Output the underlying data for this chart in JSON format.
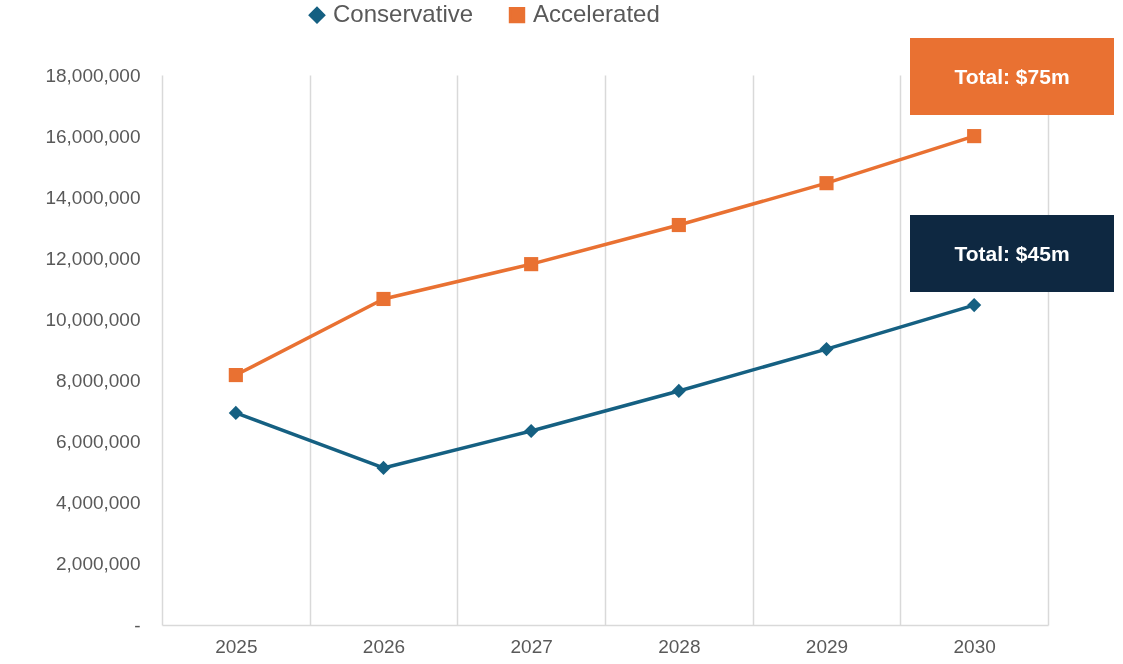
{
  "chart_data": {
    "type": "line",
    "categories": [
      "2025",
      "2026",
      "2027",
      "2028",
      "2029",
      "2030"
    ],
    "series": [
      {
        "name": "Conservative",
        "color": "#156082",
        "marker": "diamond",
        "values": [
          6940000,
          5140000,
          6350000,
          7660000,
          9030000,
          10470000
        ]
      },
      {
        "name": "Accelerated",
        "color": "#E97132",
        "marker": "square",
        "values": [
          8180000,
          10670000,
          11810000,
          13090000,
          14460000,
          16000000
        ]
      }
    ],
    "ylim": [
      0,
      18000000
    ],
    "yticks": [
      {
        "value": 0,
        "label": "-"
      },
      {
        "value": 2000000,
        "label": "2,000,000"
      },
      {
        "value": 4000000,
        "label": "4,000,000"
      },
      {
        "value": 6000000,
        "label": "6,000,000"
      },
      {
        "value": 8000000,
        "label": "8,000,000"
      },
      {
        "value": 10000000,
        "label": "10,000,000"
      },
      {
        "value": 12000000,
        "label": "12,000,000"
      },
      {
        "value": 14000000,
        "label": "14,000,000"
      },
      {
        "value": 16000000,
        "label": "16,000,000"
      },
      {
        "value": 18000000,
        "label": "18,000,000"
      }
    ],
    "grid": "x",
    "legend": "top",
    "line_style": "solid",
    "annotations": [
      "Total: $75m",
      "Total: $45m"
    ]
  }
}
